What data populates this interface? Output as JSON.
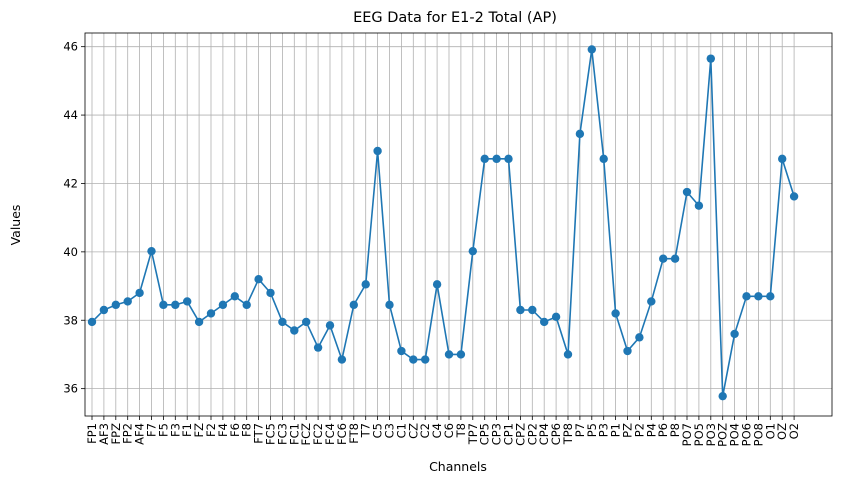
{
  "chart_data": {
    "type": "line",
    "title": "EEG Data for E1-2 Total (AP)",
    "xlabel": "Channels",
    "ylabel": "Values",
    "ylim": [
      35.2,
      46.4
    ],
    "yticks": [
      36,
      38,
      40,
      42,
      44,
      46
    ],
    "grid": true,
    "marker": "circle",
    "color": "#1f77b4",
    "categories": [
      "FP1",
      "AF3",
      "FPZ",
      "FP2",
      "AF4",
      "F7",
      "F5",
      "F3",
      "F1",
      "FZ",
      "F2",
      "F4",
      "F6",
      "F8",
      "FT7",
      "FC5",
      "FC3",
      "FC1",
      "FCZ",
      "FC2",
      "FC4",
      "FC6",
      "FT8",
      "T7",
      "C5",
      "C3",
      "C1",
      "CZ",
      "C2",
      "C4",
      "C6",
      "T8",
      "TP7",
      "CP5",
      "CP3",
      "CP1",
      "CPZ",
      "CP2",
      "CP4",
      "CP6",
      "TP8",
      "P7",
      "P5",
      "P3",
      "P1",
      "PZ",
      "P2",
      "P4",
      "P6",
      "P8",
      "PO7",
      "PO5",
      "PO3",
      "POZ",
      "PO4",
      "PO6",
      "PO8",
      "O1",
      "OZ",
      "O2"
    ],
    "values": [
      37.95,
      38.3,
      38.45,
      38.55,
      38.8,
      40.02,
      38.45,
      38.45,
      38.55,
      37.95,
      38.2,
      38.45,
      38.7,
      38.45,
      39.2,
      38.8,
      37.95,
      37.7,
      37.95,
      37.2,
      37.85,
      36.85,
      38.45,
      39.05,
      42.95,
      38.45,
      37.1,
      36.85,
      36.85,
      39.05,
      37.0,
      37.0,
      40.02,
      42.72,
      42.72,
      42.72,
      38.3,
      38.3,
      37.95,
      38.1,
      37.0,
      43.45,
      45.92,
      42.72,
      38.2,
      37.1,
      37.5,
      38.55,
      39.8,
      39.8,
      41.75,
      41.35,
      45.65,
      35.78,
      37.6,
      38.7,
      38.7,
      38.7,
      42.72,
      41.62
    ]
  }
}
